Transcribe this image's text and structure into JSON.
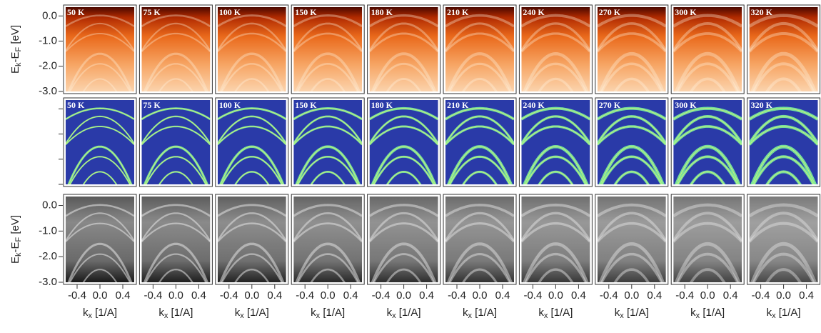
{
  "chart_data": {
    "type": "image-grid",
    "panels": [
      "50 K",
      "75 K",
      "100 K",
      "150 K",
      "180 K",
      "210 K",
      "240 K",
      "270 K",
      "300 K",
      "320 K"
    ],
    "ylabel": [
      "E",
      "k",
      "-E",
      "F",
      " [eV]"
    ],
    "xlabel": [
      "k",
      "x",
      " [1/A]"
    ],
    "ylim": [
      -3.0,
      0.35
    ],
    "yticks": [
      {
        "value": 0,
        "label": "0.0"
      },
      {
        "value": -1,
        "label": "-1.0"
      },
      {
        "value": -2,
        "label": "-2.0"
      },
      {
        "value": -3,
        "label": "-3.0"
      }
    ],
    "xlim": [
      -0.6,
      0.6
    ],
    "xticks": [
      -0.4,
      {
        "value": 0,
        "label": "0.0"
      },
      0.4
    ]
  }
}
